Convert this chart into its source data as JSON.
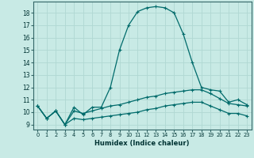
{
  "xlabel": "Humidex (Indice chaleur)",
  "bg_color": "#c8eae5",
  "grid_color": "#b0d8d2",
  "line_color": "#006b6b",
  "xlim": [
    -0.5,
    23.5
  ],
  "ylim": [
    8.6,
    18.9
  ],
  "yticks": [
    9,
    10,
    11,
    12,
    13,
    14,
    15,
    16,
    17,
    18
  ],
  "xticks": [
    0,
    1,
    2,
    3,
    4,
    5,
    6,
    7,
    8,
    9,
    10,
    11,
    12,
    13,
    14,
    15,
    16,
    17,
    18,
    19,
    20,
    21,
    22,
    23
  ],
  "series1": [
    10.5,
    9.5,
    10.1,
    9.0,
    10.4,
    9.8,
    10.4,
    10.4,
    12.0,
    15.0,
    17.0,
    18.1,
    18.4,
    18.5,
    18.4,
    18.0,
    16.3,
    14.0,
    12.0,
    11.8,
    11.7,
    10.8,
    11.0,
    10.6
  ],
  "series2": [
    10.5,
    9.5,
    10.1,
    9.0,
    10.1,
    9.9,
    10.1,
    10.3,
    10.5,
    10.6,
    10.8,
    11.0,
    11.2,
    11.3,
    11.5,
    11.6,
    11.7,
    11.8,
    11.8,
    11.5,
    11.1,
    10.7,
    10.6,
    10.5
  ],
  "series3": [
    10.5,
    9.5,
    10.1,
    9.0,
    9.5,
    9.4,
    9.5,
    9.6,
    9.7,
    9.8,
    9.9,
    10.0,
    10.2,
    10.3,
    10.5,
    10.6,
    10.7,
    10.8,
    10.8,
    10.5,
    10.2,
    9.9,
    9.9,
    9.7
  ]
}
